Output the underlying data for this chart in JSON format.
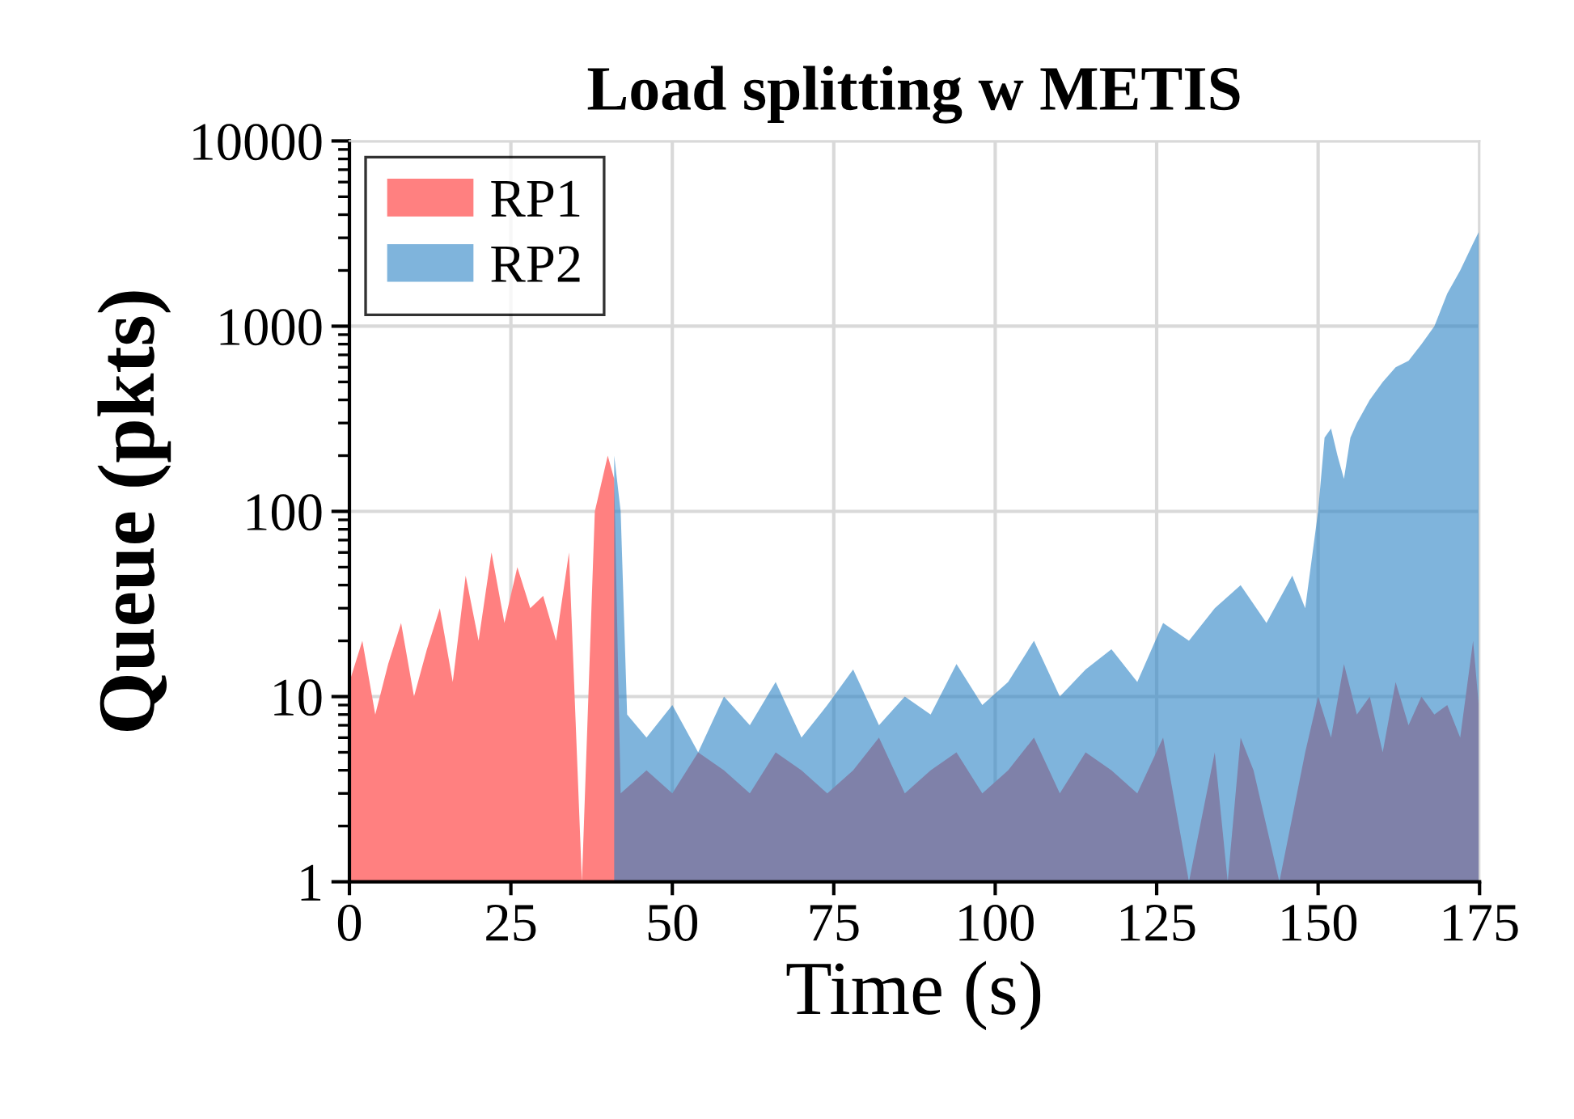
{
  "chart_data": {
    "type": "area",
    "title": "Load splitting w METIS",
    "xlabel": "Time (s)",
    "ylabel": "Queue (pkts)",
    "xlim": [
      0,
      175
    ],
    "xticks": [
      0,
      25,
      50,
      75,
      100,
      125,
      150,
      175
    ],
    "ylim": [
      1,
      10000
    ],
    "yticks": [
      1,
      10,
      100,
      1000,
      10000
    ],
    "log": true,
    "grid": true,
    "legend": "top left",
    "series": [
      {
        "name": "RP1",
        "color": "#ff8080",
        "x": [
          0,
          2,
          4,
          6,
          8,
          10,
          12,
          14,
          16,
          18,
          20,
          22,
          24,
          26,
          28,
          30,
          32,
          34,
          36,
          38,
          40,
          41,
          42,
          46,
          50,
          54,
          58,
          62,
          66,
          70,
          74,
          78,
          82,
          86,
          90,
          94,
          98,
          102,
          106,
          110,
          114,
          118,
          122,
          126,
          130,
          134,
          136,
          138,
          140,
          144,
          148,
          150,
          152,
          154,
          156,
          158,
          160,
          162,
          164,
          166,
          168,
          170,
          172,
          174,
          175
        ],
        "values": [
          12,
          20,
          8,
          15,
          25,
          10,
          18,
          30,
          12,
          45,
          20,
          60,
          25,
          50,
          30,
          35,
          20,
          60,
          1,
          100,
          200,
          150,
          3,
          4,
          3,
          5,
          4,
          3,
          5,
          4,
          3,
          4,
          6,
          3,
          4,
          5,
          3,
          4,
          6,
          3,
          5,
          4,
          3,
          6,
          1,
          5,
          1,
          6,
          4,
          1,
          5,
          10,
          6,
          15,
          8,
          10,
          5,
          12,
          7,
          10,
          8,
          9,
          6,
          20,
          8
        ]
      },
      {
        "name": "RP2",
        "color": "#7fb4dc",
        "x": [
          41,
          42,
          43,
          46,
          50,
          54,
          58,
          62,
          66,
          70,
          74,
          78,
          82,
          86,
          90,
          94,
          98,
          102,
          106,
          110,
          114,
          118,
          122,
          126,
          130,
          134,
          138,
          142,
          146,
          148,
          150,
          151,
          152,
          153,
          154,
          155,
          156,
          158,
          160,
          162,
          164,
          166,
          168,
          170,
          172,
          174,
          175
        ],
        "values": [
          200,
          100,
          8,
          6,
          9,
          5,
          10,
          7,
          12,
          6,
          9,
          14,
          7,
          10,
          8,
          15,
          9,
          12,
          20,
          10,
          14,
          18,
          12,
          25,
          20,
          30,
          40,
          25,
          45,
          30,
          100,
          250,
          280,
          200,
          150,
          250,
          300,
          400,
          500,
          600,
          650,
          800,
          1000,
          1500,
          2000,
          2800,
          3300
        ]
      }
    ]
  }
}
